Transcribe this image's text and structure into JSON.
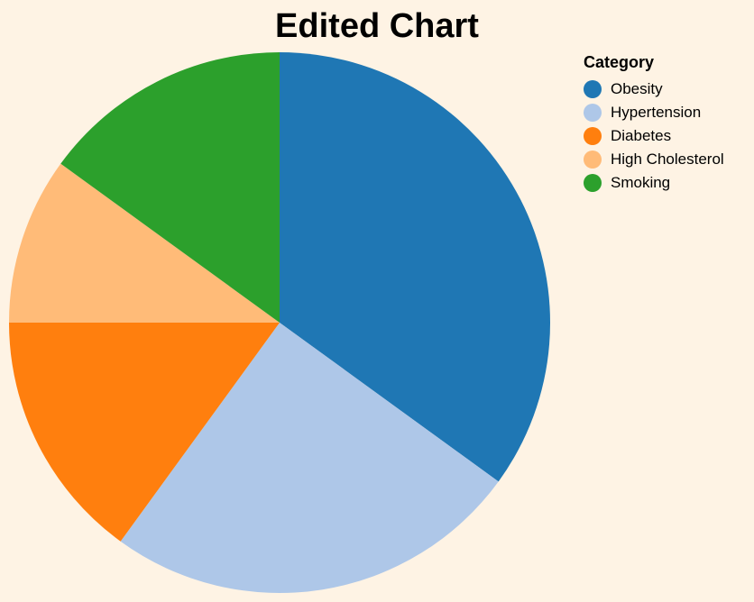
{
  "chart_data": {
    "type": "pie",
    "title": "Edited Chart",
    "legend_title": "Category",
    "legend_position": "top-right",
    "categories": [
      "Obesity",
      "Hypertension",
      "Diabetes",
      "High Cholesterol",
      "Smoking"
    ],
    "values": [
      35,
      25,
      15,
      10,
      15
    ],
    "colors": [
      "#1f77b4",
      "#aec7e8",
      "#ff7f0e",
      "#ffbb78",
      "#2ca02c"
    ]
  }
}
